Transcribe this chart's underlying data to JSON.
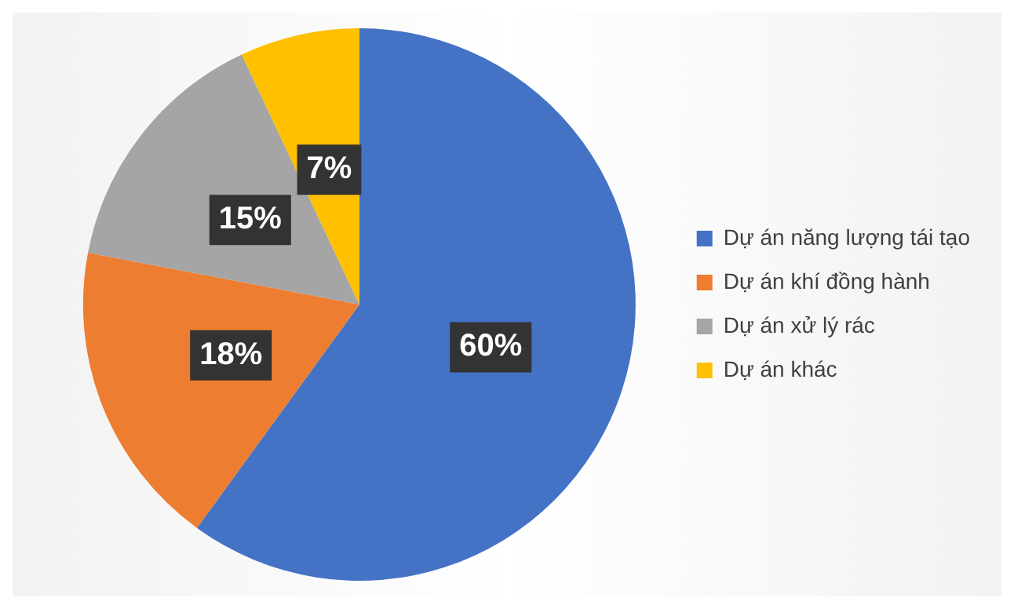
{
  "chart_data": {
    "type": "pie",
    "categories": [
      "Dự án năng lượng tái tạo",
      "Dự án khí đồng hành",
      "Dự án xử lý rác",
      "Dự án khác"
    ],
    "values": [
      60,
      18,
      15,
      7
    ],
    "colors": [
      "#4472c4",
      "#ed7d31",
      "#a5a5a5",
      "#ffc000"
    ],
    "value_labels": [
      "60%",
      "18%",
      "15%",
      "7%"
    ],
    "legend": "right"
  }
}
